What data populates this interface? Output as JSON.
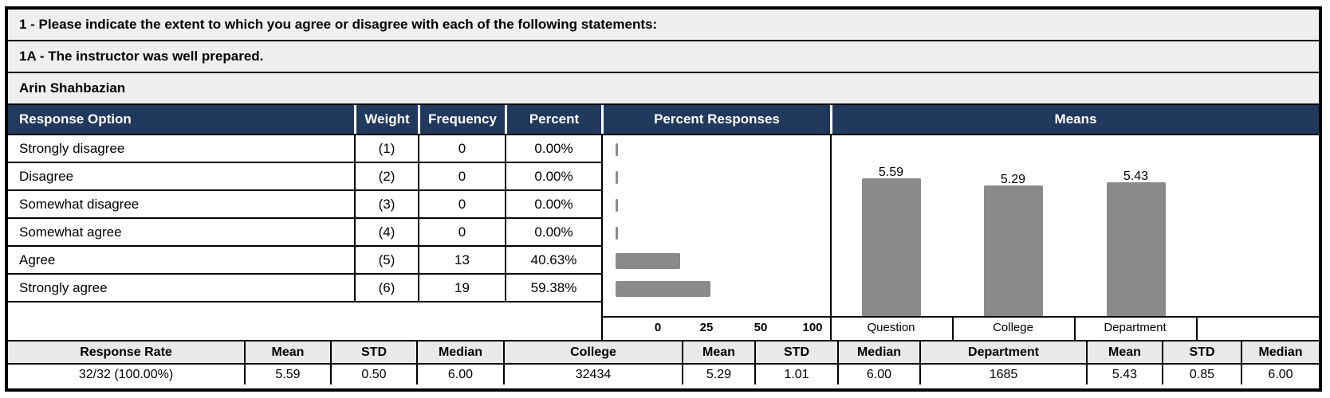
{
  "header": {
    "question_group": "1 - Please indicate the extent to which you agree or disagree with each of the following statements:",
    "question": "1A - The instructor was well prepared.",
    "instructor": "Arin Shahbazian"
  },
  "table": {
    "columns": [
      "Response Option",
      "Weight",
      "Frequency",
      "Percent",
      "Percent Responses",
      "Means"
    ],
    "rows": [
      {
        "option": "Strongly disagree",
        "weight": "(1)",
        "frequency": "0",
        "percent": "0.00%"
      },
      {
        "option": "Disagree",
        "weight": "(2)",
        "frequency": "0",
        "percent": "0.00%"
      },
      {
        "option": "Somewhat disagree",
        "weight": "(3)",
        "frequency": "0",
        "percent": "0.00%"
      },
      {
        "option": "Somewhat agree",
        "weight": "(4)",
        "frequency": "0",
        "percent": "0.00%"
      },
      {
        "option": "Agree",
        "weight": "(5)",
        "frequency": "13",
        "percent": "40.63%"
      },
      {
        "option": "Strongly agree",
        "weight": "(6)",
        "frequency": "19",
        "percent": "59.38%"
      }
    ]
  },
  "chart_data": [
    {
      "type": "bar",
      "orientation": "horizontal",
      "title": "Percent Responses",
      "categories": [
        "Strongly disagree",
        "Disagree",
        "Somewhat disagree",
        "Somewhat agree",
        "Agree",
        "Strongly agree"
      ],
      "values": [
        0,
        0,
        0,
        0,
        40.63,
        59.38
      ],
      "x_ticks": [
        "0",
        "25",
        "50",
        "100"
      ],
      "xlim": [
        0,
        100
      ],
      "bar_color": "#8A8A8A",
      "grid": false
    },
    {
      "type": "bar",
      "title": "Means",
      "categories": [
        "Question",
        "College",
        "Department"
      ],
      "values": [
        5.59,
        5.29,
        5.43
      ],
      "ylim": [
        0,
        6
      ],
      "bar_color": "#8A8A8A",
      "data_labels": [
        "5.59",
        "5.29",
        "5.43"
      ],
      "grid": false
    }
  ],
  "summary": {
    "headers": [
      "Response Rate",
      "Mean",
      "STD",
      "Median",
      "College",
      "Mean",
      "STD",
      "Median",
      "Department",
      "Mean",
      "STD",
      "Median"
    ],
    "values": [
      "32/32 (100.00%)",
      "5.59",
      "0.50",
      "6.00",
      "32434",
      "5.29",
      "1.01",
      "6.00",
      "1685",
      "5.43",
      "0.85",
      "6.00"
    ]
  },
  "colors": {
    "header_bg": "#21395C",
    "header_text": "#FFFFFF",
    "bar_gray": "#8A8A8A",
    "band_bg": "#EFEFEF",
    "summary_header_bg": "#E9E9E9",
    "border": "#000000"
  }
}
